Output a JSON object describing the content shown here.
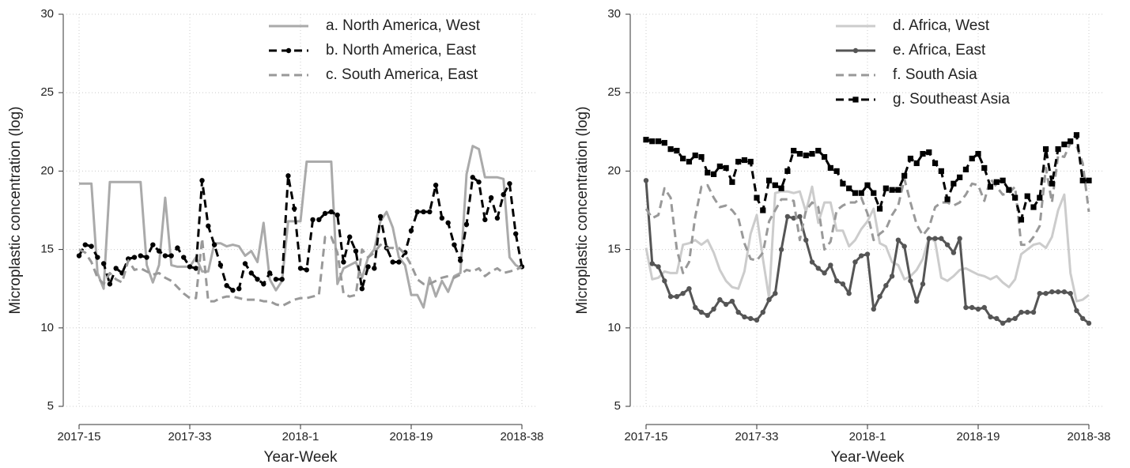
{
  "chart_data": [
    {
      "type": "line",
      "y_label": "Microplastic concentration (log)",
      "x_label": "Year-Week",
      "categories": [
        "2017-15",
        null,
        null,
        null,
        null,
        null,
        null,
        null,
        null,
        null,
        null,
        null,
        null,
        null,
        null,
        null,
        null,
        null,
        "2017-33",
        null,
        null,
        null,
        null,
        null,
        null,
        null,
        null,
        null,
        null,
        null,
        null,
        null,
        null,
        null,
        null,
        null,
        "2018-1",
        null,
        null,
        null,
        null,
        null,
        null,
        null,
        null,
        null,
        null,
        null,
        null,
        null,
        null,
        null,
        null,
        null,
        "2018-19",
        null,
        null,
        null,
        null,
        null,
        null,
        null,
        null,
        null,
        null,
        null,
        null,
        null,
        null,
        null,
        null,
        null,
        "2018-38"
      ],
      "ylim": [
        5,
        30
      ],
      "yticks": [
        5,
        10,
        15,
        20,
        25,
        30
      ],
      "grid": true,
      "legend": "upper right",
      "series": [
        {
          "name": "a. North America, West",
          "color": "#aaaaaa",
          "dash": false,
          "marker": "none",
          "values": [
            19.2,
            19.2,
            19.2,
            13.5,
            12.5,
            19.3,
            19.3,
            19.3,
            19.3,
            19.3,
            19.3,
            14,
            12.9,
            14,
            18.3,
            14,
            13.9,
            13.9,
            13.9,
            14.5,
            13.6,
            13.6,
            15.4,
            15.4,
            15.2,
            15.3,
            15.2,
            14.6,
            14.9,
            14.2,
            16.7,
            13.1,
            12.4,
            13,
            16.8,
            16.8,
            16.8,
            20.6,
            20.6,
            20.6,
            20.6,
            20.6,
            12.8,
            13.8,
            14,
            14.2,
            13.2,
            14.5,
            15,
            16.8,
            17.4,
            16.4,
            14.5,
            14,
            12.1,
            12.1,
            11.3,
            13.2,
            12,
            13,
            12.3,
            13.3,
            13.5,
            19.8,
            21.6,
            21.4,
            19.6,
            19.6,
            19.6,
            19.5,
            14.5,
            14,
            13.8
          ]
        },
        {
          "name": "b. North America, East",
          "color": "#000000",
          "dash": true,
          "marker": "circle",
          "values": [
            14.6,
            15.3,
            15.2,
            14.5,
            14.1,
            12.8,
            13.8,
            13.5,
            14.4,
            14.5,
            14.6,
            14.5,
            15.3,
            14.9,
            14.6,
            14.6,
            15.1,
            14.5,
            13.9,
            13.8,
            19.4,
            16.5,
            15.3,
            14,
            12.7,
            12.4,
            12.5,
            14.1,
            13.5,
            13.1,
            12.8,
            13.5,
            13.1,
            13.1,
            19.7,
            17.6,
            13.8,
            13.7,
            16.9,
            16.9,
            17.3,
            17.4,
            17.2,
            14.2,
            15.8,
            14.9,
            12.5,
            13.9,
            13.8,
            17.1,
            15.1,
            14.2,
            14.2,
            14.8,
            16.2,
            17.4,
            17.4,
            17.4,
            19.1,
            17,
            16.7,
            15.3,
            14.3,
            16.6,
            19.6,
            19.3,
            16.9,
            18.3,
            17,
            18.5,
            19.2,
            16,
            13.9
          ]
        },
        {
          "name": "c. South America, East",
          "color": "#999999",
          "dash": true,
          "marker": "none",
          "values": [
            15,
            14.8,
            14.2,
            13.2,
            12.8,
            13.5,
            13.1,
            12.9,
            14.3,
            13.7,
            13.8,
            13.6,
            13.4,
            13.5,
            13.2,
            13,
            12.6,
            12.2,
            11.9,
            11.9,
            15.7,
            11.7,
            11.7,
            11.9,
            12,
            12,
            11.9,
            11.8,
            11.8,
            11.8,
            11.7,
            11.7,
            11.5,
            11.4,
            11.6,
            11.8,
            11.9,
            11.9,
            12,
            12.1,
            15.8,
            15.8,
            14.8,
            12.2,
            12,
            12.1,
            15,
            14.5,
            14.8,
            15.3,
            15.1,
            15.1,
            15.1,
            14.7,
            14,
            13.1,
            12.8,
            12.8,
            13,
            13.2,
            13.3,
            13.2,
            13.4,
            13.7,
            13.6,
            13.8,
            13.3,
            13.6,
            13.8,
            13.5,
            13.6,
            13.7,
            13.9
          ]
        }
      ]
    },
    {
      "type": "line",
      "y_label": "Microplastic concentration (log)",
      "x_label": "Year-Week",
      "categories": [
        "2017-15",
        null,
        null,
        null,
        null,
        null,
        null,
        null,
        null,
        null,
        null,
        null,
        null,
        null,
        null,
        null,
        null,
        null,
        "2017-33",
        null,
        null,
        null,
        null,
        null,
        null,
        null,
        null,
        null,
        null,
        null,
        null,
        null,
        null,
        null,
        null,
        null,
        "2018-1",
        null,
        null,
        null,
        null,
        null,
        null,
        null,
        null,
        null,
        null,
        null,
        null,
        null,
        null,
        null,
        null,
        null,
        "2018-19",
        null,
        null,
        null,
        null,
        null,
        null,
        null,
        null,
        null,
        null,
        null,
        null,
        null,
        null,
        null,
        null,
        null,
        "2018-38"
      ],
      "ylim": [
        5,
        30
      ],
      "yticks": [
        5,
        10,
        15,
        20,
        25,
        30
      ],
      "grid": true,
      "legend": "upper right",
      "series": [
        {
          "name": "d. Africa, West",
          "color": "#cccccc",
          "dash": false,
          "marker": "none",
          "values": [
            15.1,
            13.1,
            13.2,
            13.6,
            13.5,
            13.5,
            15.3,
            15.4,
            15.6,
            15.3,
            15.6,
            14.8,
            13.7,
            13,
            12.6,
            12.5,
            13.6,
            16,
            17.2,
            14.4,
            11.9,
            18.6,
            18.7,
            18.7,
            18.6,
            18.7,
            17.4,
            19,
            16.7,
            18,
            18,
            16.2,
            16.2,
            15.2,
            15.6,
            16.3,
            16.8,
            17.6,
            15.4,
            15.2,
            14.2,
            14,
            13.1,
            13.3,
            13.7,
            14.4,
            15.8,
            15.5,
            13.2,
            13,
            13.3,
            13.7,
            13.8,
            13.6,
            13.4,
            13.3,
            13.1,
            13.3,
            12.9,
            12.6,
            13.1,
            14.7,
            15,
            15.3,
            15.4,
            15.1,
            15.8,
            17.5,
            18.5,
            13.5,
            11.7,
            11.8,
            12.1
          ]
        },
        {
          "name": "e. Africa, East",
          "color": "#555555",
          "dash": false,
          "marker": "circle",
          "values": [
            19.4,
            14.1,
            13.9,
            13,
            12,
            12,
            12.2,
            12.5,
            11.3,
            11,
            10.8,
            11.2,
            11.8,
            11.5,
            11.7,
            11,
            10.7,
            10.6,
            10.5,
            11,
            11.8,
            12.2,
            15,
            17.1,
            17,
            17.1,
            15.6,
            14.2,
            13.8,
            13.5,
            14,
            13,
            12.8,
            12.2,
            14.2,
            14.6,
            14.7,
            11.2,
            12,
            12.7,
            13.3,
            15.6,
            15.2,
            13,
            11.7,
            12.8,
            15.7,
            15.7,
            15.7,
            15.3,
            14.8,
            15.7,
            11.3,
            11.3,
            11.2,
            11.3,
            10.7,
            10.6,
            10.3,
            10.5,
            10.6,
            11,
            11,
            11,
            12.2,
            12.2,
            12.3,
            12.3,
            12.3,
            12.2,
            11.1,
            10.6,
            10.3
          ]
        },
        {
          "name": "f. South Asia",
          "color": "#999999",
          "dash": true,
          "marker": "none",
          "values": [
            17.6,
            17,
            17.2,
            18.9,
            18.3,
            15,
            13.5,
            14.2,
            17.1,
            19,
            19.1,
            18.3,
            17.7,
            17.8,
            17.5,
            17,
            15.4,
            14.4,
            14.3,
            14.8,
            16.8,
            17.5,
            18.2,
            18.2,
            18.1,
            15.6,
            17.5,
            18,
            17.7,
            15,
            15.5,
            17.5,
            17.8,
            18,
            18,
            18.3,
            17.3,
            15.6,
            16,
            16.3,
            17.2,
            17.8,
            19.5,
            18,
            16.6,
            15.9,
            16.4,
            17.7,
            18,
            18,
            17.8,
            18,
            18.5,
            19.2,
            19.1,
            18.1,
            19.5,
            19,
            18.5,
            18.6,
            19,
            15.3,
            15.3,
            15.8,
            16.5,
            20.2,
            18,
            21,
            20.9,
            21.8,
            21.6,
            20.5,
            17.4
          ]
        },
        {
          "name": "g. Southeast Asia",
          "color": "#000000",
          "dash": true,
          "marker": "square",
          "values": [
            22,
            21.9,
            21.9,
            21.8,
            21.4,
            21.3,
            20.8,
            20.6,
            21,
            20.9,
            19.9,
            19.8,
            20.3,
            20.2,
            19.3,
            20.6,
            20.7,
            20.6,
            18.3,
            17.5,
            19.4,
            19.1,
            18.9,
            20,
            21.3,
            21.1,
            21,
            21.1,
            21.3,
            20.9,
            20.2,
            20,
            19.2,
            18.9,
            18.6,
            18.6,
            19.1,
            18.6,
            17.6,
            18.9,
            18.8,
            18.8,
            19.7,
            20.8,
            20.5,
            21.1,
            21.2,
            20.5,
            20,
            18.2,
            19.2,
            19.6,
            20.1,
            20.8,
            21.1,
            20.2,
            19,
            19.3,
            19.4,
            18.8,
            18.3,
            16.9,
            18.4,
            17.7,
            18.3,
            21.4,
            19.2,
            21.4,
            21.7,
            21.9,
            22.3,
            19.4,
            19.4
          ]
        }
      ]
    }
  ]
}
